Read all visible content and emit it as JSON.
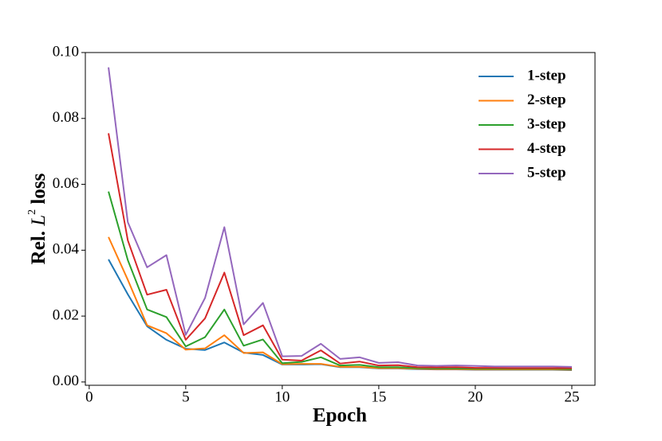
{
  "chart_data": {
    "type": "line",
    "xlabel": "Epoch",
    "ylabel": [
      "Rel.",
      "L",
      "2",
      "loss"
    ],
    "x": [
      1,
      2,
      3,
      4,
      5,
      6,
      7,
      8,
      9,
      10,
      11,
      12,
      13,
      14,
      15,
      16,
      17,
      18,
      19,
      20,
      21,
      22,
      23,
      24,
      25
    ],
    "series": [
      {
        "name": "1-step",
        "color": "#1f77b4",
        "values": [
          0.0372,
          0.0266,
          0.0169,
          0.0128,
          0.0101,
          0.0097,
          0.012,
          0.0089,
          0.0082,
          0.0053,
          0.0053,
          0.0054,
          0.0045,
          0.0045,
          0.0041,
          0.0041,
          0.0039,
          0.0038,
          0.0038,
          0.0037,
          0.0037,
          0.0037,
          0.0037,
          0.0037,
          0.0036
        ]
      },
      {
        "name": "2-step",
        "color": "#ff7f0e",
        "values": [
          0.044,
          0.031,
          0.0172,
          0.0148,
          0.0098,
          0.0102,
          0.0142,
          0.0088,
          0.009,
          0.0054,
          0.0055,
          0.0055,
          0.0046,
          0.0046,
          0.0042,
          0.0042,
          0.004,
          0.0039,
          0.0039,
          0.0038,
          0.0038,
          0.0038,
          0.0038,
          0.0038,
          0.0037
        ]
      },
      {
        "name": "3-step",
        "color": "#2ca02c",
        "values": [
          0.0578,
          0.037,
          0.022,
          0.0197,
          0.0108,
          0.0136,
          0.022,
          0.011,
          0.0129,
          0.0057,
          0.0061,
          0.0075,
          0.005,
          0.0052,
          0.0045,
          0.0045,
          0.0042,
          0.0041,
          0.0041,
          0.004,
          0.004,
          0.004,
          0.004,
          0.004,
          0.0039
        ]
      },
      {
        "name": "4-step",
        "color": "#d62728",
        "values": [
          0.0755,
          0.043,
          0.0265,
          0.028,
          0.0128,
          0.0193,
          0.0332,
          0.0142,
          0.0172,
          0.0068,
          0.0065,
          0.0096,
          0.0056,
          0.0062,
          0.005,
          0.0051,
          0.0045,
          0.0044,
          0.0045,
          0.0043,
          0.0043,
          0.0042,
          0.0042,
          0.0042,
          0.0042
        ]
      },
      {
        "name": "5-step",
        "color": "#9467bd",
        "values": [
          0.0955,
          0.0485,
          0.0348,
          0.0385,
          0.0143,
          0.0255,
          0.047,
          0.0175,
          0.024,
          0.0078,
          0.0079,
          0.0116,
          0.007,
          0.0075,
          0.0058,
          0.006,
          0.005,
          0.0049,
          0.005,
          0.0049,
          0.0047,
          0.0047,
          0.0047,
          0.0047,
          0.0046
        ]
      }
    ],
    "xlim": [
      -0.2,
      26.2
    ],
    "xticks": [
      0,
      5,
      10,
      15,
      20,
      25
    ],
    "ylim": [
      -0.001,
      0.1
    ],
    "yticks": [
      {
        "value": 0,
        "label": "0.00"
      },
      {
        "value": 0.02,
        "label": "0.02"
      },
      {
        "value": 0.04,
        "label": "0.04"
      },
      {
        "value": 0.06,
        "label": "0.06"
      },
      {
        "value": 0.08,
        "label": "0.08"
      },
      {
        "value": 0.1,
        "label": "0.10"
      }
    ],
    "legend": "upper right",
    "grid": false
  }
}
